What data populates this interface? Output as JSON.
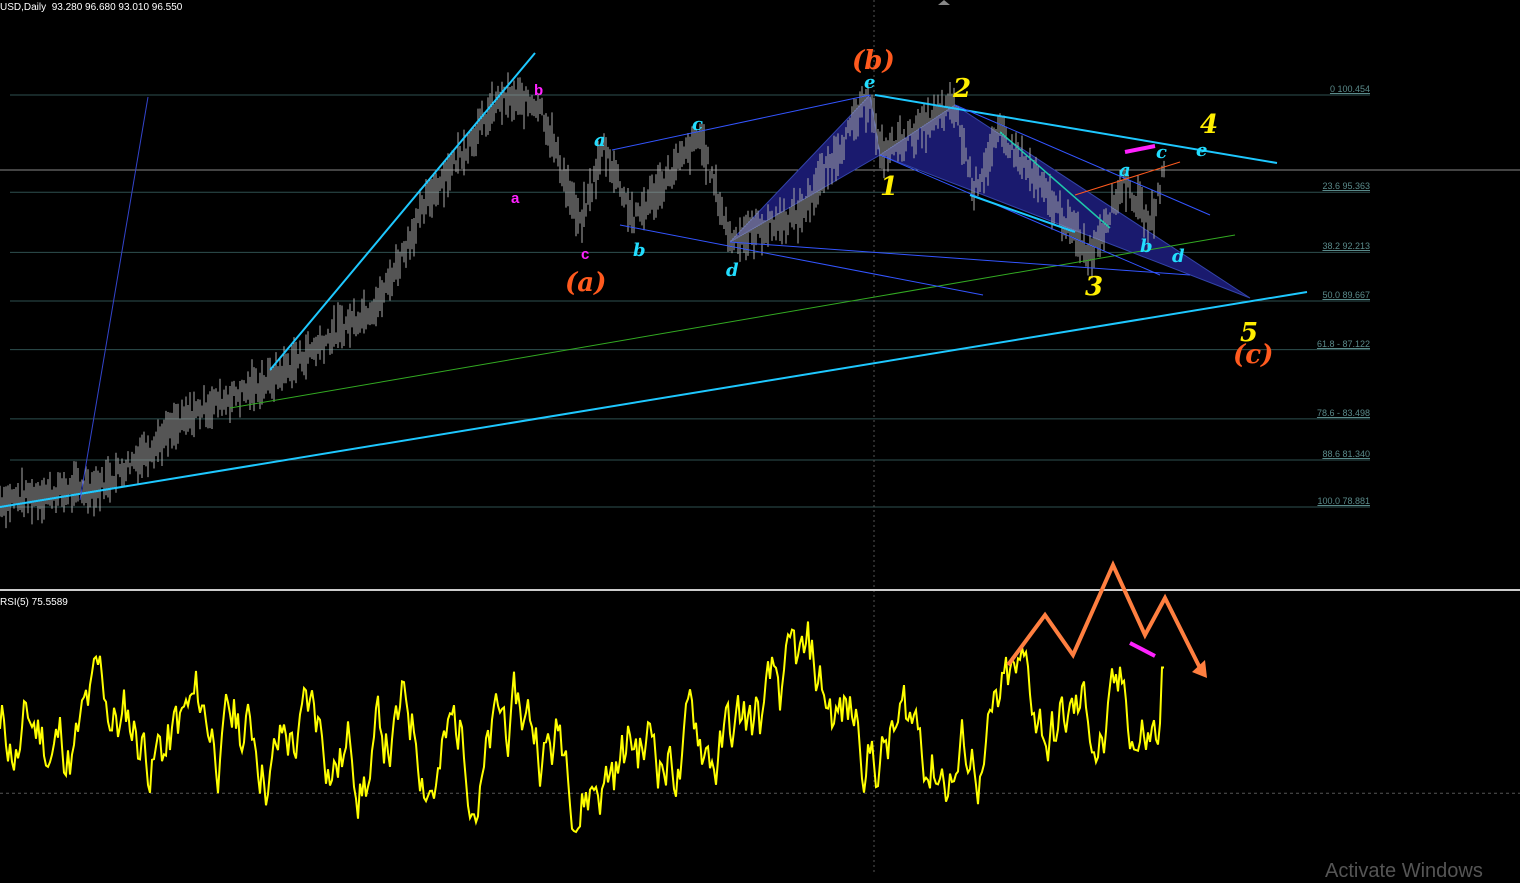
{
  "header": {
    "symbol": "USD,Daily",
    "ohlc": "93.280 96.680 93.010 96.550"
  },
  "rsi": {
    "label": "RSI(5) 75.5589",
    "period": 5,
    "value": 75.5589,
    "level": 30,
    "color": "#ffff00"
  },
  "watermark": "Activate Windows",
  "colors": {
    "background": "#000000",
    "bars": "#aaaaaa",
    "trend": "#1ec8ff",
    "triangle": "#1a1a6e",
    "fib": "#2e4f4f",
    "orange": "#ff5a1e",
    "yellow": "#ffee00",
    "cyan": "#22ddff",
    "magenta": "#ff22ff",
    "green": "#33aa22"
  },
  "chart_data": {
    "type": "bar",
    "ylim": [
      78.881,
      100.454
    ],
    "fib_levels": [
      {
        "level": "0",
        "price": 100.454,
        "label": "0 100.454"
      },
      {
        "level": "23.6",
        "price": 95.363,
        "label": "23.6 95.363"
      },
      {
        "level": "38.2",
        "price": 92.213,
        "label": "38.2 92.213"
      },
      {
        "level": "50.0",
        "price": 89.667,
        "label": "50.0 89.667"
      },
      {
        "level": "61.8",
        "price": 87.122,
        "label": "61.8 - 87.122"
      },
      {
        "level": "78.6",
        "price": 83.498,
        "label": "78.6 - 83.498"
      },
      {
        "level": "88.6",
        "price": 81.34,
        "label": "88.6 81.340"
      },
      {
        "level": "100.0",
        "price": 78.881,
        "label": "100.0 78.881"
      }
    ],
    "price_path": [
      [
        0,
        79.2
      ],
      [
        50,
        80
      ],
      [
        100,
        84
      ],
      [
        135,
        85.5
      ],
      [
        190,
        89.7
      ],
      [
        215,
        95.2
      ],
      [
        250,
        100.2
      ],
      [
        270,
        100
      ],
      [
        290,
        93.6
      ],
      [
        302,
        97.8
      ],
      [
        317,
        93.9
      ],
      [
        350,
        98.3
      ],
      [
        365,
        92.9
      ],
      [
        400,
        94.2
      ],
      [
        435,
        100.4
      ],
      [
        440,
        97.3
      ],
      [
        477,
        99.9
      ],
      [
        487,
        95.5
      ],
      [
        500,
        98.5
      ],
      [
        545,
        92.1
      ],
      [
        562,
        96
      ],
      [
        575,
        93.6
      ],
      [
        582,
        96.5
      ]
    ],
    "wave_labels": {
      "a1": "a",
      "b1": "b",
      "c1": "c",
      "a_big": "(a)",
      "a2": "a",
      "b2": "b",
      "c2": "c",
      "d2": "d",
      "e2": "e",
      "b_big": "(b)",
      "w1": "1",
      "w2": "2",
      "w3": "3",
      "w4": "4",
      "w5": "5",
      "c_big": "(c)",
      "a3": "a",
      "b3": "b",
      "c3": "c",
      "d3": "d",
      "e3": "e"
    }
  }
}
